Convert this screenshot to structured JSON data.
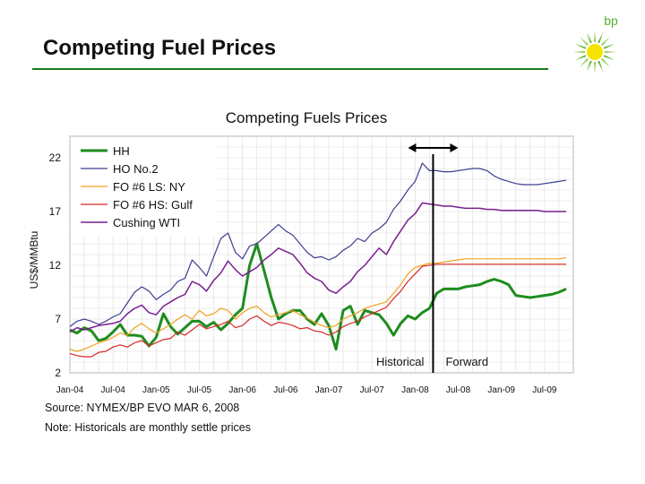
{
  "slide": {
    "title": "Competing Fuel Prices",
    "logo_text": "bp",
    "source": "Source: NYMEX/BP EVO MAR 6, 2008",
    "note": "Note: Historicals are monthly settle prices"
  },
  "colors": {
    "accent_green": "#1a7a1a",
    "logo_yellow": "#f5e400",
    "logo_green": "#58b030"
  },
  "chart_data": {
    "type": "line",
    "title": "Competing Fuels Prices",
    "ylabel": "US$/MMBtu",
    "xlabel": "",
    "ylim": [
      2,
      24
    ],
    "yticks": [
      22,
      17,
      12,
      7,
      2
    ],
    "xticks": [
      "Jan-04",
      "Jul-04",
      "Jan-05",
      "Jul-05",
      "Jan-06",
      "Jul-06",
      "Jan-07",
      "Jul-07",
      "Jan-08",
      "Jul-08",
      "Jan-09",
      "Jul-09"
    ],
    "grid": true,
    "legend_position": "top-left",
    "x_range_months": [
      0,
      70
    ],
    "divider_month": 50.5,
    "regions": [
      "Historical",
      "Forward"
    ],
    "series": [
      {
        "name": "HH",
        "color": "#1e8c1e",
        "width": 3,
        "values": [
          6.0,
          5.7,
          6.2,
          5.9,
          5.0,
          5.2,
          5.8,
          6.5,
          5.5,
          5.5,
          5.4,
          4.5,
          5.3,
          7.5,
          6.3,
          5.6,
          6.2,
          6.8,
          6.8,
          6.3,
          6.7,
          6.0,
          6.6,
          7.4,
          8.0,
          12.0,
          14.0,
          11.5,
          9.0,
          7.0,
          7.5,
          7.8,
          7.8,
          7.0,
          6.5,
          7.5,
          6.4,
          4.2,
          7.8,
          8.2,
          6.5,
          7.8,
          7.6,
          7.4,
          6.6,
          5.5,
          6.6,
          7.3,
          7.0,
          7.6,
          8.0,
          9.4,
          9.8,
          9.8,
          9.8,
          10.0,
          10.1,
          10.2,
          10.5,
          10.7,
          10.5,
          10.2,
          9.2,
          9.1,
          9.0,
          9.1,
          9.2,
          9.3,
          9.5,
          9.8
        ]
      },
      {
        "name": "HO No.2",
        "color": "#3b3f8f",
        "width": 1.2,
        "values": [
          6.3,
          6.8,
          7.0,
          6.8,
          6.5,
          6.8,
          7.2,
          7.5,
          8.5,
          9.5,
          10.0,
          9.6,
          8.8,
          9.3,
          9.7,
          10.5,
          10.8,
          12.5,
          11.8,
          11.0,
          12.8,
          14.5,
          15.0,
          13.2,
          12.6,
          13.8,
          14.0,
          14.6,
          15.2,
          15.8,
          15.2,
          14.8,
          14.0,
          13.2,
          12.7,
          12.8,
          12.5,
          12.8,
          13.4,
          13.8,
          14.5,
          14.2,
          15.0,
          15.4,
          16.0,
          17.2,
          18.0,
          19.0,
          19.8,
          21.5,
          20.8,
          20.8,
          20.7,
          20.7,
          20.8,
          20.9,
          21.0,
          21.0,
          20.8,
          20.3,
          20.0,
          19.8,
          19.6,
          19.5,
          19.5,
          19.5,
          19.6,
          19.7,
          19.8,
          19.9
        ]
      },
      {
        "name": "FO #6 LS: NY",
        "color": "#f0a020",
        "width": 1.2,
        "values": [
          4.2,
          4.0,
          4.2,
          4.5,
          4.8,
          5.0,
          5.3,
          5.7,
          5.5,
          6.2,
          6.6,
          6.1,
          5.7,
          6.1,
          6.5,
          7.0,
          7.4,
          7.0,
          7.8,
          7.3,
          7.5,
          8.0,
          7.8,
          7.0,
          7.6,
          8.0,
          8.2,
          7.6,
          7.2,
          7.4,
          7.6,
          7.8,
          7.4,
          7.1,
          6.7,
          6.4,
          6.2,
          6.4,
          7.0,
          7.3,
          7.6,
          8.0,
          8.2,
          8.4,
          8.6,
          9.4,
          10.2,
          11.2,
          11.8,
          12.0,
          12.2,
          12.2,
          12.3,
          12.4,
          12.5,
          12.6,
          12.6,
          12.6,
          12.6,
          12.6,
          12.6,
          12.6,
          12.6,
          12.6,
          12.6,
          12.6,
          12.6,
          12.6,
          12.6,
          12.7
        ]
      },
      {
        "name": "FO #6 HS: Gulf",
        "color": "#d82828",
        "width": 1.2,
        "values": [
          3.8,
          3.6,
          3.5,
          3.5,
          3.9,
          4.0,
          4.4,
          4.6,
          4.4,
          4.8,
          5.0,
          4.5,
          4.8,
          5.1,
          5.2,
          5.8,
          5.5,
          6.0,
          6.5,
          6.1,
          6.3,
          6.5,
          6.8,
          6.2,
          6.4,
          7.0,
          7.3,
          6.8,
          6.4,
          6.7,
          6.6,
          6.4,
          6.1,
          6.2,
          5.9,
          5.8,
          5.5,
          5.8,
          6.3,
          6.6,
          6.8,
          7.2,
          7.5,
          7.8,
          8.1,
          8.9,
          9.6,
          10.5,
          11.2,
          11.9,
          12.0,
          12.1,
          12.1,
          12.1,
          12.1,
          12.1,
          12.1,
          12.1,
          12.1,
          12.1,
          12.1,
          12.1,
          12.1,
          12.1,
          12.1,
          12.1,
          12.1,
          12.1,
          12.1,
          12.1
        ]
      },
      {
        "name": "Cushing WTI",
        "color": "#7a1e8f",
        "width": 1.5,
        "values": [
          5.8,
          6.2,
          6.0,
          6.2,
          6.4,
          6.5,
          6.6,
          6.8,
          7.5,
          8.0,
          8.3,
          7.6,
          7.4,
          8.2,
          8.6,
          9.0,
          9.3,
          10.5,
          10.2,
          9.6,
          10.6,
          11.3,
          12.4,
          11.6,
          11.0,
          11.4,
          11.8,
          12.5,
          13.0,
          13.6,
          13.3,
          13.0,
          12.2,
          11.3,
          10.8,
          10.5,
          9.7,
          9.4,
          10.0,
          10.5,
          11.4,
          12.0,
          12.8,
          13.6,
          13.0,
          14.2,
          15.2,
          16.2,
          16.8,
          17.8,
          17.7,
          17.6,
          17.5,
          17.5,
          17.4,
          17.3,
          17.3,
          17.3,
          17.2,
          17.2,
          17.1,
          17.1,
          17.1,
          17.1,
          17.1,
          17.1,
          17.0,
          17.0,
          17.0,
          17.0
        ]
      }
    ]
  }
}
